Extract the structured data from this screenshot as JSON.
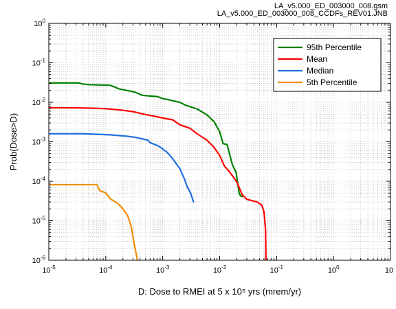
{
  "header": {
    "line1": "LA_v5.000_ED_003000_008.gsm",
    "line2": "LA_v5.000_ED_003000_008_CCDFs_REV01.JNB"
  },
  "chart_data": {
    "type": "line",
    "title": "",
    "xlabel": "D: Dose to RMEI at 5 x 10⁵ yrs (mrem/yr)",
    "ylabel": "Prob(Dose>D)",
    "x_scale": "log",
    "y_scale": "log",
    "xlim": [
      1e-05,
      10
    ],
    "ylim": [
      1e-06,
      1
    ],
    "grid": true,
    "legend_position": "top-right",
    "x_ticks": [
      1e-05,
      0.0001,
      0.001,
      0.01,
      0.1,
      1,
      10
    ],
    "x_tick_labels": [
      {
        "base": "10",
        "exp": "-5"
      },
      {
        "base": "10",
        "exp": "-4"
      },
      {
        "base": "10",
        "exp": "-3"
      },
      {
        "base": "10",
        "exp": "-2"
      },
      {
        "base": "10",
        "exp": "-1"
      },
      {
        "base": "10",
        "exp": "0"
      },
      {
        "base": "10",
        "exp": ""
      }
    ],
    "y_ticks": [
      1e-06,
      1e-05,
      0.0001,
      0.001,
      0.01,
      0.1,
      1
    ],
    "y_tick_labels": [
      {
        "base": "10",
        "exp": "-6"
      },
      {
        "base": "10",
        "exp": "-5"
      },
      {
        "base": "10",
        "exp": "-4"
      },
      {
        "base": "10",
        "exp": "-3"
      },
      {
        "base": "10",
        "exp": "-2"
      },
      {
        "base": "10",
        "exp": "-1"
      },
      {
        "base": "10",
        "exp": "0"
      }
    ],
    "series": [
      {
        "name": "95th Percentile",
        "color": "#008000",
        "x": [
          1e-05,
          3.3e-05,
          4e-05,
          5e-05,
          0.00012,
          0.00017,
          0.00033,
          0.00044,
          0.0008,
          0.001,
          0.002,
          0.0025,
          0.004,
          0.006,
          0.008,
          0.01,
          0.0115,
          0.0135,
          0.015,
          0.0165,
          0.018,
          0.0195,
          0.022,
          0.0235,
          0.026
        ],
        "y": [
          0.031,
          0.031,
          0.029,
          0.028,
          0.027,
          0.022,
          0.018,
          0.015,
          0.014,
          0.0125,
          0.01,
          0.0085,
          0.0068,
          0.0048,
          0.0032,
          0.0018,
          0.0009,
          0.00085,
          0.00048,
          0.00028,
          0.00021,
          0.000165,
          5e-05,
          4.2e-05,
          4.1e-05
        ]
      },
      {
        "name": "Mean",
        "color": "#ff0000",
        "x": [
          1e-05,
          4e-05,
          0.0001,
          0.0002,
          0.0003,
          0.0005,
          0.0008,
          0.001,
          0.0015,
          0.002,
          0.003,
          0.004,
          0.006,
          0.008,
          0.01,
          0.012,
          0.015,
          0.018,
          0.02,
          0.022,
          0.025,
          0.03,
          0.045,
          0.055,
          0.06,
          0.064,
          0.065
        ],
        "y": [
          0.0073,
          0.0072,
          0.0069,
          0.0063,
          0.0058,
          0.0049,
          0.0043,
          0.004,
          0.0036,
          0.0027,
          0.0022,
          0.0016,
          0.0011,
          0.00072,
          0.00045,
          0.00025,
          0.00017,
          0.00012,
          9.5e-05,
          7e-05,
          4.5e-05,
          3.5e-05,
          3e-05,
          2.5e-05,
          1.7e-05,
          6e-06,
          1e-06
        ]
      },
      {
        "name": "Median",
        "color": "#1f6fdf",
        "x": [
          1e-05,
          4e-05,
          0.00012,
          0.00022,
          0.00033,
          0.00055,
          0.0006,
          0.00085,
          0.0012,
          0.0015,
          0.002,
          0.0024,
          0.0027,
          0.0031,
          0.0035
        ],
        "y": [
          0.0016,
          0.0016,
          0.0015,
          0.0014,
          0.0013,
          0.0011,
          0.00095,
          0.00078,
          0.00054,
          0.00037,
          0.00021,
          0.000115,
          7.2e-05,
          5e-05,
          2.9e-05
        ]
      },
      {
        "name": "5th Percentile",
        "color": "#f08c00",
        "x": [
          1e-05,
          2.8e-05,
          5e-05,
          7e-05,
          7.8e-05,
          0.0001,
          0.00012,
          0.00016,
          0.00019,
          0.00024,
          0.00028,
          0.00031,
          0.00033,
          0.00036
        ],
        "y": [
          8.2e-05,
          8.2e-05,
          8.2e-05,
          8.2e-05,
          5.8e-05,
          5.1e-05,
          3.6e-05,
          2.8e-05,
          2.2e-05,
          1.4e-05,
          7.2e-06,
          3e-06,
          1.9e-06,
          1e-06
        ]
      }
    ]
  }
}
